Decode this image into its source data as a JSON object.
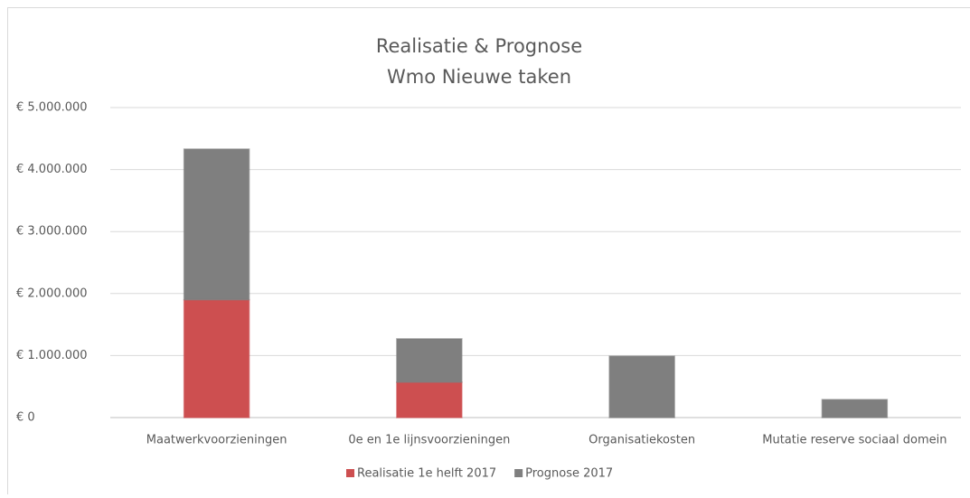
{
  "chart_data": {
    "type": "stacked_bar",
    "title": "Realisatie & Prognose",
    "subtitle": "Wmo Nieuwe taken",
    "categories": [
      "Maatwerkvoorzieningen",
      "0e en 1e lijnsvoorzieningen",
      "Organisatiekosten",
      "Mutatie reserve sociaal domein"
    ],
    "series": [
      {
        "name": "Realisatie 1e helft 2017",
        "color": "#cd4f50",
        "values": [
          1900000,
          570000,
          0,
          0
        ]
      },
      {
        "name": "Prognose 2017",
        "color": "#7f7f7f",
        "values": [
          2430000,
          700000,
          990000,
          290000
        ]
      }
    ],
    "ylim": [
      0,
      5000000
    ],
    "yticks": [
      {
        "value": 0,
        "label": "€ 0"
      },
      {
        "value": 1000000,
        "label": "€ 1.000.000"
      },
      {
        "value": 2000000,
        "label": "€ 2.000.000"
      },
      {
        "value": 3000000,
        "label": "€ 3.000.000"
      },
      {
        "value": 4000000,
        "label": "€ 4.000.000"
      },
      {
        "value": 5000000,
        "label": "€ 5.000.000"
      }
    ],
    "grid": true,
    "legend": "bottom"
  }
}
